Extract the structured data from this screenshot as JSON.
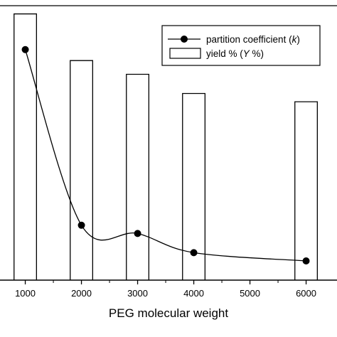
{
  "chart_data": {
    "type": "bar",
    "xlabel": "PEG molecular weight",
    "x_ticks": [
      1000,
      2000,
      3000,
      4000,
      5000,
      6000
    ],
    "xlim": [
      550,
      6550
    ],
    "ylim": [
      0,
      100
    ],
    "grid": false,
    "legend_placement": "top-right",
    "series": [
      {
        "name": "yield % (Y %)",
        "kind": "bar",
        "x": [
          1000,
          2000,
          3000,
          4000,
          6000
        ],
        "values": [
          97,
          80,
          75,
          68,
          65
        ],
        "bar_width": 400
      },
      {
        "name": "partition coefficient (k)",
        "kind": "line",
        "markers": "filled-circle",
        "smooth": true,
        "x": [
          1000,
          2000,
          3000,
          4000,
          6000
        ],
        "values": [
          84,
          20,
          17,
          10,
          7
        ]
      }
    ],
    "legend": {
      "line_label": "partition coefficient (",
      "line_symbol": "k",
      "line_suffix": ")",
      "bar_label": "yield % (",
      "bar_symbol": "Y",
      "bar_suffix": " %)"
    }
  }
}
